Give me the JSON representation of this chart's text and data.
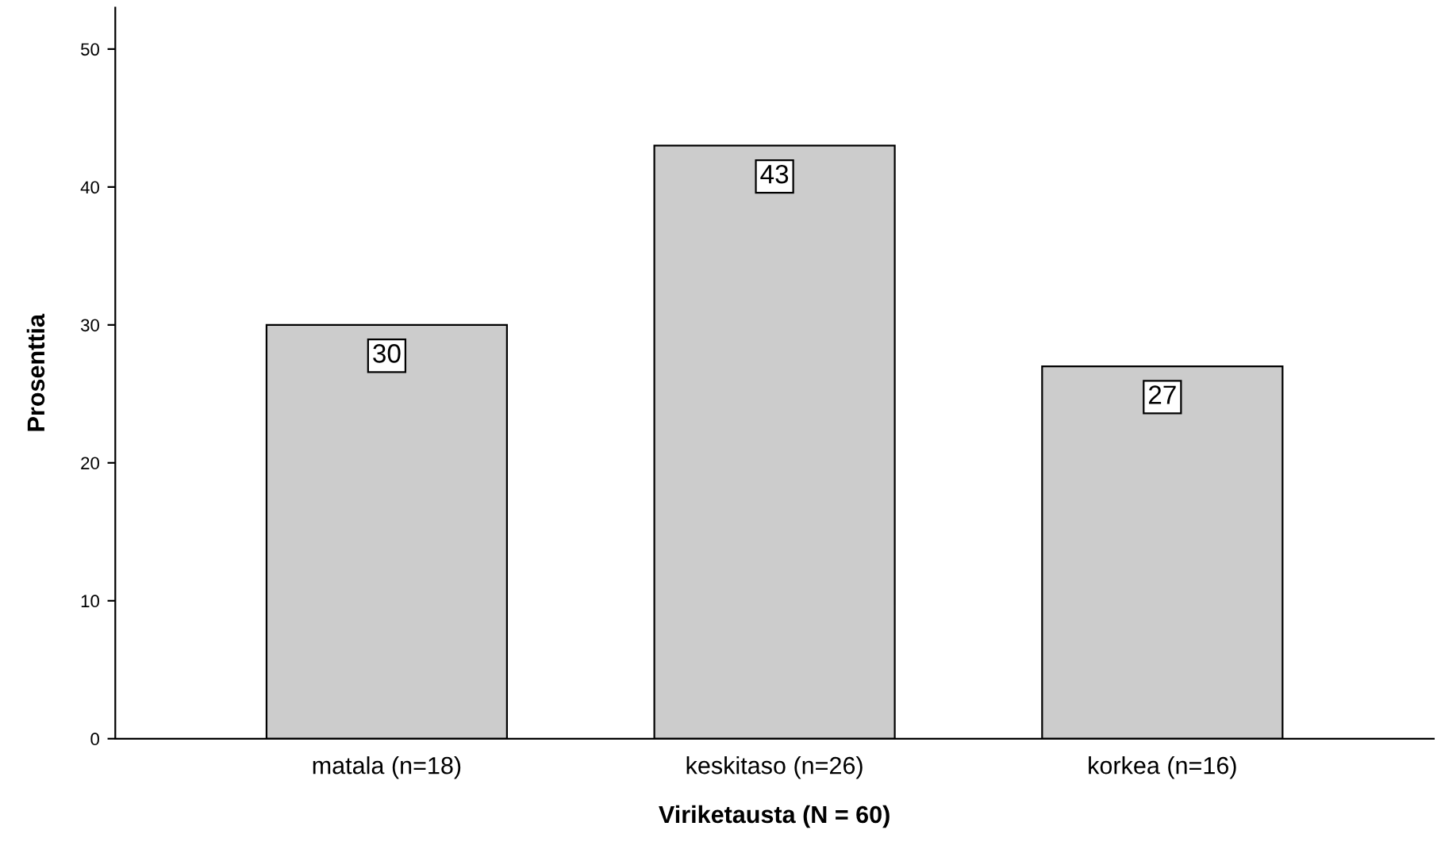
{
  "chart_data": {
    "type": "bar",
    "categories": [
      "matala (n=18)",
      "keskitaso (n=26)",
      "korkea (n=16)"
    ],
    "values": [
      30,
      43,
      27
    ],
    "color": "#cccccc",
    "xlabel": "Viriketausta (N = 60)",
    "ylabel": "Prosenttia",
    "ylim": [
      0,
      53
    ],
    "yticks": [
      0,
      10,
      20,
      30,
      40,
      50
    ],
    "data_labels": true,
    "grid": false
  }
}
